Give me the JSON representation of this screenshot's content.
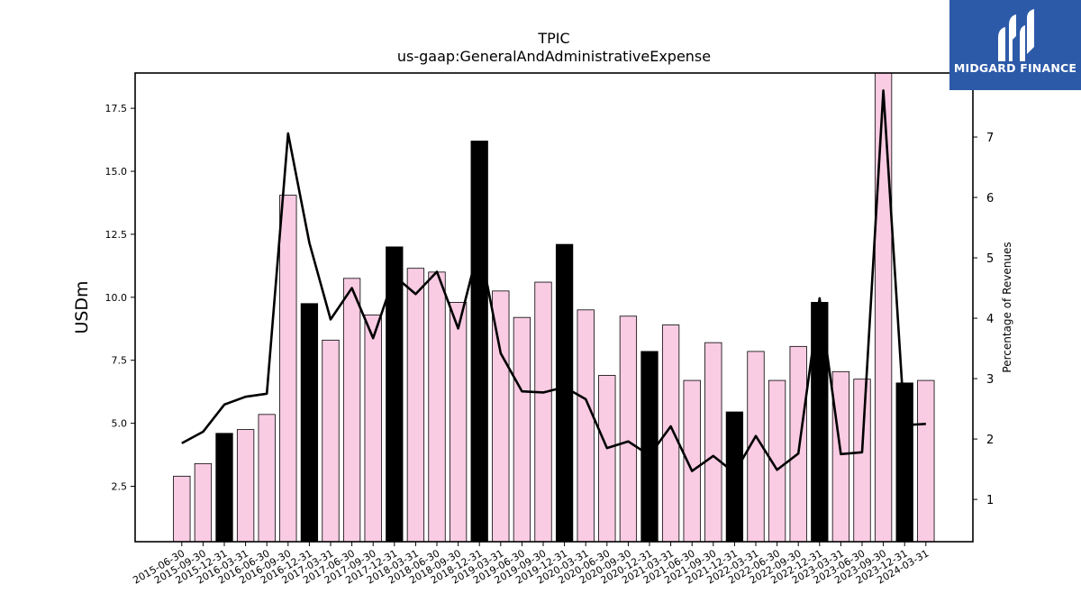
{
  "chart_data": {
    "type": "bar",
    "title": "TPIC",
    "subtitle": "us-gaap:GeneralAndAdministrativeExpense",
    "ylabel": "USDm",
    "y2label": "Percentage of Revenues",
    "ylim": [
      0.3,
      18.9
    ],
    "y2lim": [
      0.3,
      8.06
    ],
    "yticks": [
      2.5,
      5.0,
      7.5,
      10.0,
      12.5,
      15.0,
      17.5
    ],
    "ytick_labels": [
      "2.5",
      "5.0",
      "7.5",
      "10.0",
      "12.5",
      "15.0",
      "17.5"
    ],
    "y2ticks": [
      1,
      2,
      3,
      4,
      5,
      6,
      7
    ],
    "y2tick_labels": [
      "1",
      "2",
      "3",
      "4",
      "5",
      "6",
      "7"
    ],
    "categories": [
      "2015-06-30",
      "2015-09-30",
      "2015-12-31",
      "2016-03-31",
      "2016-06-30",
      "2016-09-30",
      "2016-12-31",
      "2017-03-31",
      "2017-06-30",
      "2017-09-30",
      "2017-12-31",
      "2018-03-31",
      "2018-06-30",
      "2018-09-30",
      "2018-12-31",
      "2019-03-31",
      "2019-06-30",
      "2019-09-30",
      "2019-12-31",
      "2020-03-31",
      "2020-06-30",
      "2020-09-30",
      "2020-12-31",
      "2021-03-31",
      "2021-06-30",
      "2021-09-30",
      "2021-12-31",
      "2022-03-31",
      "2022-06-30",
      "2022-09-30",
      "2022-12-31",
      "2023-03-31",
      "2023-06-30",
      "2023-09-30",
      "2023-12-31",
      "2024-03-31"
    ],
    "series": [
      {
        "type": "bar",
        "values": [
          2.9,
          3.4,
          4.6,
          4.75,
          5.35,
          14.05,
          9.75,
          8.3,
          10.75,
          9.3,
          12.0,
          11.15,
          11.0,
          9.8,
          16.2,
          10.25,
          9.2,
          10.6,
          12.1,
          9.5,
          6.9,
          9.25,
          7.85,
          8.9,
          6.7,
          8.2,
          5.45,
          7.85,
          6.7,
          8.05,
          9.8,
          7.05,
          6.75,
          18.9,
          6.6,
          6.7
        ],
        "highlight_quarter_end": "12-31"
      },
      {
        "type": "line",
        "axis": "right",
        "values": [
          1.93,
          2.12,
          2.57,
          2.7,
          2.75,
          7.06,
          5.25,
          3.98,
          4.5,
          3.67,
          4.7,
          4.4,
          4.77,
          3.83,
          5.22,
          3.42,
          2.79,
          2.77,
          2.86,
          2.66,
          1.85,
          1.96,
          1.73,
          2.21,
          1.47,
          1.72,
          1.44,
          2.05,
          1.49,
          1.76,
          4.33,
          1.75,
          1.78,
          7.77,
          2.23,
          2.25
        ]
      }
    ],
    "colors": {
      "bar_default": "#f9cce3",
      "bar_highlight": "#000000",
      "bar_edge": "#000000",
      "line": "#000000"
    },
    "grid": false,
    "legend": "none"
  },
  "logo": {
    "text": "MIDGARD FINANCE",
    "background": "#2d5aa8"
  }
}
